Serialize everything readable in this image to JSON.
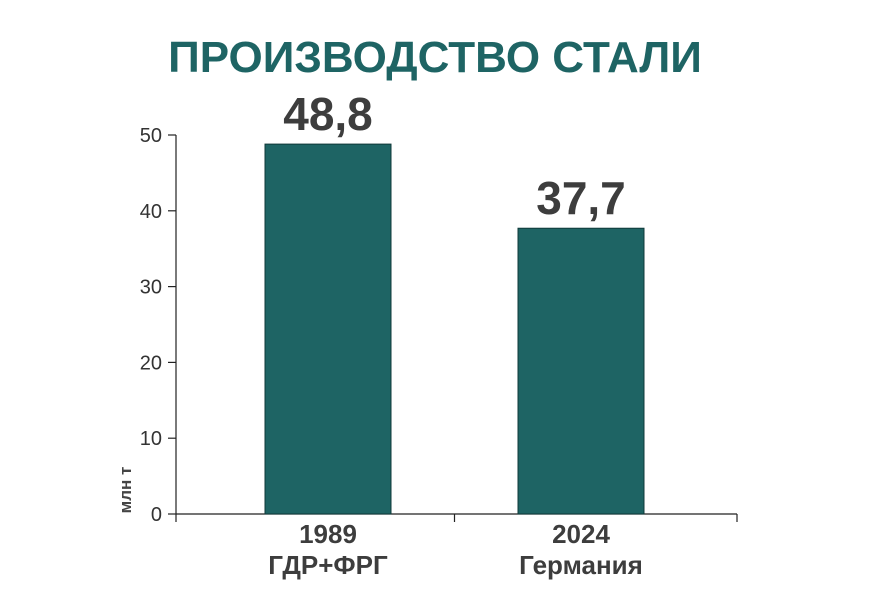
{
  "colors": {
    "title": "#1e6464",
    "bar": "#1e6464",
    "axis": "#222222",
    "text": "#3d3d3d"
  },
  "chart_data": {
    "type": "bar",
    "title": "ПРОИЗВОДСТВО СТАЛИ",
    "ylabel": "млн т",
    "xlabel": "",
    "ylim": [
      0,
      50
    ],
    "yticks": [
      "0",
      "10",
      "20",
      "30",
      "40",
      "50"
    ],
    "grid": false,
    "categories": [
      {
        "year": "1989",
        "region": "ГДР+ФРГ"
      },
      {
        "year": "2024",
        "region": "Германия"
      }
    ],
    "values": [
      48.8,
      37.7
    ],
    "value_labels": [
      "48,8",
      "37,7"
    ]
  }
}
